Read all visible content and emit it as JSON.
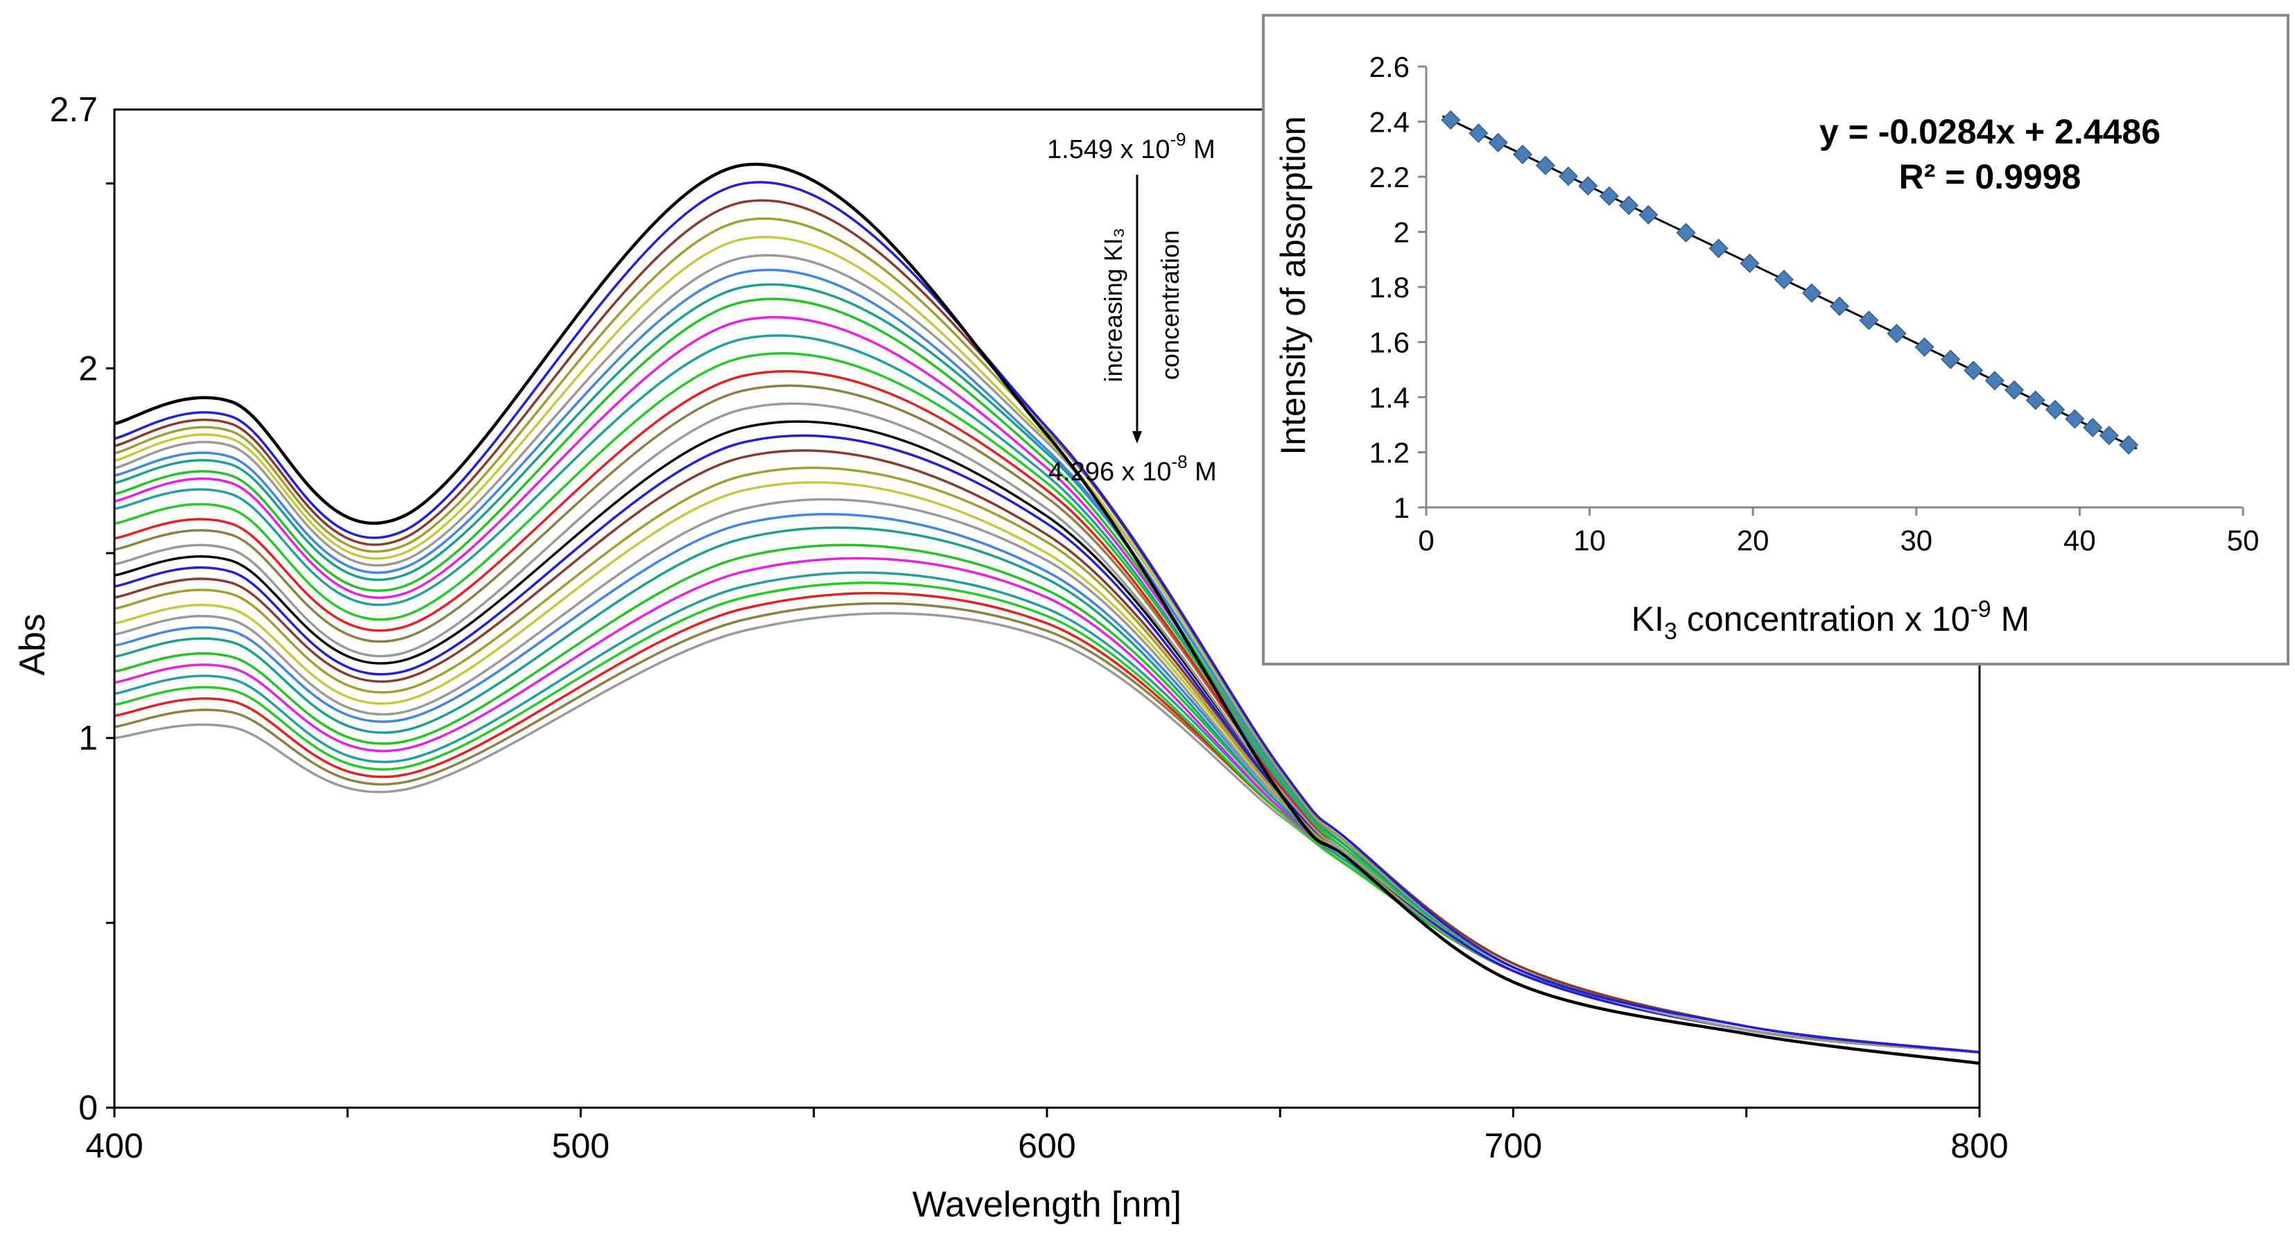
{
  "chart_data": [
    {
      "type": "line",
      "xlabel": "Wavelength [nm]",
      "ylabel": "Abs",
      "xlim": [
        400,
        800
      ],
      "ylim": [
        0,
        2.7
      ],
      "x_ticks": [
        "400",
        "500",
        "600",
        "700",
        "800"
      ],
      "y_ticks": [
        "0",
        "1",
        "2",
        "2.7"
      ],
      "grid": false,
      "legend": "none",
      "annotation": {
        "top_value": "1.549 x 10",
        "top_exp": "-9",
        "top_unit": " M",
        "arrow_text_1": "increasing KI₃",
        "arrow_text_2": "concentration",
        "bottom_value": "4.296 x 10",
        "bottom_exp": "-8",
        "bottom_unit": " M"
      },
      "reference_wavelengths": [
        400,
        425,
        462,
        535,
        600,
        650,
        665,
        700,
        750,
        800
      ],
      "series_colors": [
        "#000000",
        "#1f1fdc",
        "#8b3a2b",
        "#a0a030",
        "#c8c83c",
        "#9a9a9a",
        "#3f86e8",
        "#19a090",
        "#22c422",
        "#e61ee6",
        "#22a0a0",
        "#22cc22",
        "#e62020",
        "#908040",
        "#9a9a9a",
        "#000000",
        "#1f1fdc",
        "#8b3a2b",
        "#a0a030",
        "#c8c83c",
        "#9a9a9a",
        "#3f86e8",
        "#19a090",
        "#22c422",
        "#e61ee6",
        "#22a0a0",
        "#22cc22",
        "#e62020",
        "#908040",
        "#9a9a9a"
      ],
      "series": [
        {
          "values": [
            1.85,
            1.91,
            1.6,
            2.55,
            1.82,
            0.85,
            0.67,
            0.34,
            0.2,
            0.12
          ]
        },
        {
          "values": [
            1.81,
            1.87,
            1.56,
            2.5,
            1.84,
            0.92,
            0.72,
            0.38,
            0.22,
            0.15
          ]
        },
        {
          "values": [
            1.79,
            1.85,
            1.54,
            2.45,
            1.84,
            0.92,
            0.72,
            0.39,
            0.22,
            0.15
          ]
        },
        {
          "values": [
            1.77,
            1.83,
            1.52,
            2.4,
            1.83,
            0.91,
            0.71,
            0.39,
            0.22,
            0.15
          ]
        },
        {
          "values": [
            1.75,
            1.81,
            1.5,
            2.35,
            1.81,
            0.91,
            0.71,
            0.39,
            0.22,
            0.15
          ]
        },
        {
          "values": [
            1.73,
            1.79,
            1.48,
            2.3,
            1.8,
            0.91,
            0.71,
            0.38,
            0.22,
            0.15
          ]
        },
        {
          "values": [
            1.71,
            1.76,
            1.46,
            2.26,
            1.78,
            0.9,
            0.71,
            0.38,
            0.22,
            0.15
          ]
        },
        {
          "values": [
            1.69,
            1.74,
            1.44,
            2.22,
            1.77,
            0.9,
            0.7,
            0.38,
            0.22,
            0.15
          ]
        },
        {
          "values": [
            1.66,
            1.71,
            1.41,
            2.18,
            1.75,
            0.89,
            0.7,
            0.38,
            0.22,
            0.15
          ]
        },
        {
          "values": [
            1.64,
            1.69,
            1.39,
            2.13,
            1.73,
            0.89,
            0.7,
            0.38,
            0.22,
            0.15
          ]
        },
        {
          "values": [
            1.62,
            1.66,
            1.37,
            2.08,
            1.71,
            0.88,
            0.7,
            0.38,
            0.22,
            0.15
          ]
        },
        {
          "values": [
            1.58,
            1.62,
            1.33,
            2.03,
            1.69,
            0.88,
            0.69,
            0.38,
            0.22,
            0.15
          ]
        },
        {
          "values": [
            1.54,
            1.58,
            1.3,
            1.98,
            1.67,
            0.87,
            0.69,
            0.38,
            0.22,
            0.15
          ]
        },
        {
          "values": [
            1.51,
            1.55,
            1.27,
            1.94,
            1.65,
            0.87,
            0.69,
            0.38,
            0.22,
            0.15
          ]
        },
        {
          "values": [
            1.47,
            1.51,
            1.23,
            1.89,
            1.62,
            0.86,
            0.68,
            0.38,
            0.21,
            0.15
          ]
        },
        {
          "values": [
            1.44,
            1.48,
            1.21,
            1.84,
            1.6,
            0.86,
            0.68,
            0.38,
            0.21,
            0.15
          ]
        },
        {
          "values": [
            1.41,
            1.45,
            1.18,
            1.8,
            1.58,
            0.85,
            0.68,
            0.37,
            0.21,
            0.15
          ]
        },
        {
          "values": [
            1.38,
            1.42,
            1.16,
            1.76,
            1.55,
            0.85,
            0.68,
            0.37,
            0.21,
            0.15
          ]
        },
        {
          "values": [
            1.35,
            1.39,
            1.13,
            1.71,
            1.53,
            0.84,
            0.67,
            0.37,
            0.21,
            0.15
          ]
        },
        {
          "values": [
            1.31,
            1.35,
            1.1,
            1.67,
            1.5,
            0.84,
            0.67,
            0.37,
            0.21,
            0.15
          ]
        },
        {
          "values": [
            1.28,
            1.32,
            1.07,
            1.62,
            1.48,
            0.83,
            0.67,
            0.37,
            0.21,
            0.15
          ]
        },
        {
          "values": [
            1.25,
            1.29,
            1.05,
            1.58,
            1.45,
            0.83,
            0.67,
            0.37,
            0.21,
            0.15
          ]
        },
        {
          "values": [
            1.22,
            1.26,
            1.02,
            1.54,
            1.43,
            0.82,
            0.66,
            0.37,
            0.21,
            0.15
          ]
        },
        {
          "values": [
            1.18,
            1.22,
            0.99,
            1.49,
            1.4,
            0.82,
            0.66,
            0.37,
            0.21,
            0.15
          ]
        },
        {
          "values": [
            1.15,
            1.19,
            0.97,
            1.45,
            1.38,
            0.81,
            0.66,
            0.37,
            0.21,
            0.15
          ]
        },
        {
          "values": [
            1.12,
            1.16,
            0.94,
            1.41,
            1.35,
            0.81,
            0.66,
            0.37,
            0.21,
            0.15
          ]
        },
        {
          "values": [
            1.09,
            1.13,
            0.92,
            1.38,
            1.33,
            0.8,
            0.65,
            0.37,
            0.21,
            0.15
          ]
        },
        {
          "values": [
            1.06,
            1.1,
            0.9,
            1.35,
            1.31,
            0.8,
            0.65,
            0.37,
            0.21,
            0.15
          ]
        },
        {
          "values": [
            1.03,
            1.07,
            0.88,
            1.32,
            1.29,
            0.8,
            0.65,
            0.37,
            0.21,
            0.15
          ]
        },
        {
          "values": [
            1.0,
            1.03,
            0.86,
            1.29,
            1.27,
            0.79,
            0.65,
            0.37,
            0.21,
            0.15
          ]
        }
      ]
    },
    {
      "type": "scatter",
      "xlabel_main": "KI",
      "xlabel_sub": "3",
      "xlabel_rest": " concentration x 10",
      "xlabel_exp": "-9",
      "xlabel_unit": " M",
      "ylabel": "Intensity of absorption",
      "xlim": [
        0,
        50
      ],
      "ylim": [
        1,
        2.6
      ],
      "x_ticks": [
        "0",
        "10",
        "20",
        "30",
        "40",
        "50"
      ],
      "y_ticks": [
        "1",
        "1.2",
        "1.4",
        "1.6",
        "1.8",
        "2",
        "2.2",
        "2.4",
        "2.6"
      ],
      "equation": "y = -0.0284x + 2.4486",
      "r_squared": "R² = 0.9998",
      "trendline": {
        "slope": -0.0284,
        "intercept": 2.4486
      },
      "marker_color": "#4a7db8",
      "points": [
        {
          "x": 1.5,
          "y": 2.406
        },
        {
          "x": 3.2,
          "y": 2.358
        },
        {
          "x": 4.4,
          "y": 2.324
        },
        {
          "x": 5.9,
          "y": 2.281
        },
        {
          "x": 7.3,
          "y": 2.241
        },
        {
          "x": 8.7,
          "y": 2.202
        },
        {
          "x": 9.9,
          "y": 2.167
        },
        {
          "x": 11.2,
          "y": 2.13
        },
        {
          "x": 12.4,
          "y": 2.096
        },
        {
          "x": 13.6,
          "y": 2.062
        },
        {
          "x": 15.9,
          "y": 1.997
        },
        {
          "x": 17.9,
          "y": 1.94
        },
        {
          "x": 19.8,
          "y": 1.886
        },
        {
          "x": 21.9,
          "y": 1.827
        },
        {
          "x": 23.6,
          "y": 1.778
        },
        {
          "x": 25.3,
          "y": 1.73
        },
        {
          "x": 27.1,
          "y": 1.679
        },
        {
          "x": 28.8,
          "y": 1.631
        },
        {
          "x": 30.5,
          "y": 1.582
        },
        {
          "x": 32.1,
          "y": 1.537
        },
        {
          "x": 33.5,
          "y": 1.497
        },
        {
          "x": 34.8,
          "y": 1.46
        },
        {
          "x": 36.0,
          "y": 1.426
        },
        {
          "x": 37.3,
          "y": 1.389
        },
        {
          "x": 38.5,
          "y": 1.355
        },
        {
          "x": 39.7,
          "y": 1.321
        },
        {
          "x": 40.8,
          "y": 1.29
        },
        {
          "x": 41.8,
          "y": 1.261
        },
        {
          "x": 43.0,
          "y": 1.227
        }
      ]
    }
  ]
}
